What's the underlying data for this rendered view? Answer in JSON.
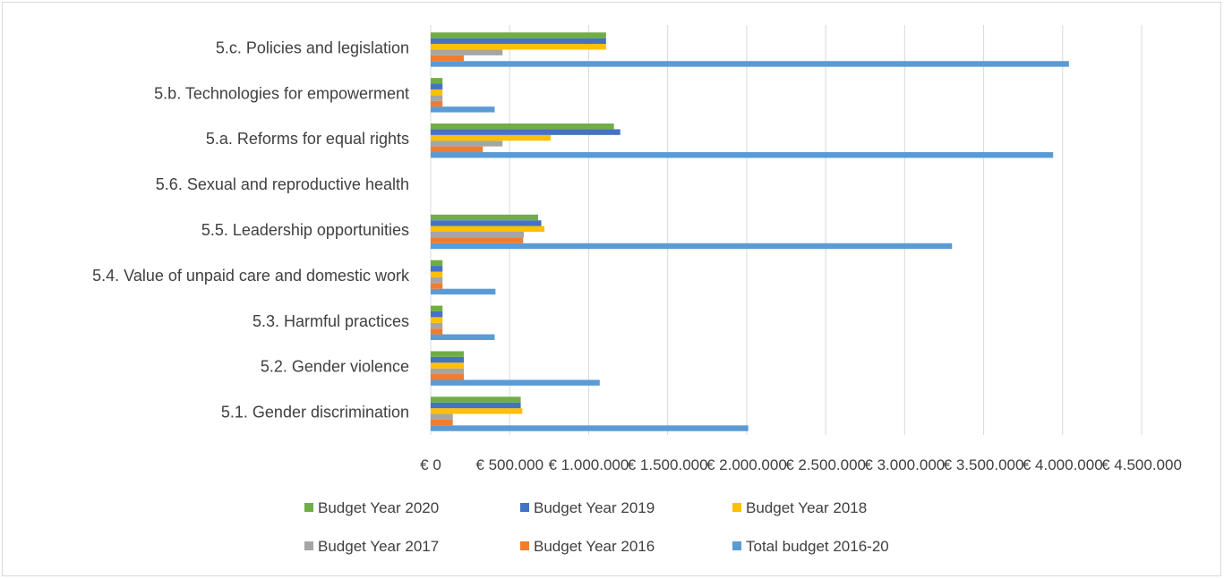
{
  "chart_data": {
    "type": "bar",
    "orientation": "horizontal",
    "categories": [
      "5.1. Gender discrimination",
      "5.2. Gender violence",
      "5.3. Harmful practices",
      "5.4. Value of unpaid care and domestic work",
      "5.5. Leadership opportunities",
      "5.6. Sexual and reproductive health",
      "5.a. Reforms for equal rights",
      "5.b. Technologies for empowerment",
      "5.c. Policies and legislation"
    ],
    "series": [
      {
        "name": "Total budget 2016-20",
        "color": "#5b9bd5",
        "values": [
          2010000,
          1070000,
          405000,
          410000,
          3300000,
          0,
          3940000,
          405000,
          4040000
        ]
      },
      {
        "name": "Budget Year 2016",
        "color": "#ed7d31",
        "values": [
          140000,
          210000,
          75000,
          75000,
          585000,
          0,
          330000,
          75000,
          210000
        ]
      },
      {
        "name": "Budget Year 2017",
        "color": "#a5a5a5",
        "values": [
          140000,
          210000,
          75000,
          75000,
          590000,
          0,
          455000,
          75000,
          455000
        ]
      },
      {
        "name": "Budget Year 2018",
        "color": "#ffc000",
        "values": [
          580000,
          210000,
          75000,
          75000,
          720000,
          0,
          760000,
          75000,
          1110000
        ]
      },
      {
        "name": "Budget Year 2019",
        "color": "#4472c4",
        "values": [
          570000,
          210000,
          75000,
          75000,
          700000,
          0,
          1200000,
          75000,
          1110000
        ]
      },
      {
        "name": "Budget Year 2020",
        "color": "#70ad47",
        "values": [
          570000,
          210000,
          75000,
          75000,
          680000,
          0,
          1160000,
          75000,
          1110000
        ]
      }
    ],
    "xlim": [
      0,
      4500000
    ],
    "xticks": [
      "€ 0",
      "€ 500.000",
      "€ 1.000.000",
      "€ 1.500.000",
      "€ 2.000.000",
      "€ 2.500.000",
      "€ 3.000.000",
      "€ 3.500.000",
      "€ 4.000.000",
      "€ 4.500.000"
    ],
    "grid": "vertical",
    "legend_position": "bottom",
    "legend_order": [
      "Budget Year 2020",
      "Budget Year 2019",
      "Budget Year 2018",
      "Budget Year 2017",
      "Budget Year 2016",
      "Total budget 2016-20"
    ],
    "title": "",
    "xlabel": "",
    "ylabel": ""
  }
}
